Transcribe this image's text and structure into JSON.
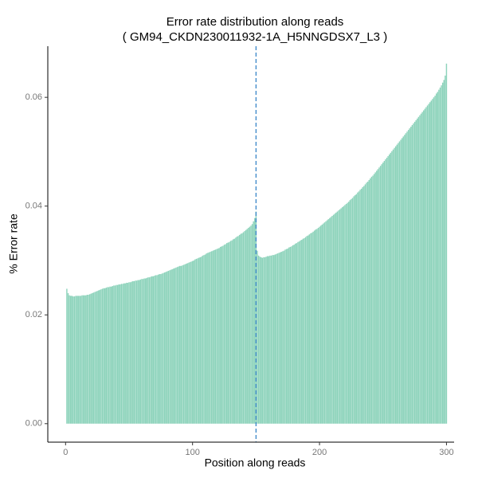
{
  "chart_data": {
    "type": "bar",
    "title": "Error rate distribution along reads",
    "subtitle": "( GM94_CKDN230011932-1A_H5NNGDSX7_L3 )",
    "xlabel": "Position along reads",
    "ylabel": "% Error rate",
    "color": "#8dd3bb",
    "vline": {
      "x": 150,
      "color": "#3a86c8"
    },
    "xlim": [
      -14,
      306
    ],
    "ylim": [
      -0.0034,
      0.0694
    ],
    "xticks": [
      0,
      100,
      200,
      300
    ],
    "yticks": [
      {
        "value": 0,
        "label": "0.00"
      },
      0.02,
      0.04,
      0.06
    ],
    "x": [
      1,
      2,
      3,
      4,
      5,
      6,
      7,
      8,
      9,
      10,
      11,
      12,
      13,
      14,
      15,
      16,
      17,
      18,
      19,
      20,
      21,
      22,
      23,
      24,
      25,
      26,
      27,
      28,
      29,
      30,
      31,
      32,
      33,
      34,
      35,
      36,
      37,
      38,
      39,
      40,
      41,
      42,
      43,
      44,
      45,
      46,
      47,
      48,
      49,
      50,
      51,
      52,
      53,
      54,
      55,
      56,
      57,
      58,
      59,
      60,
      61,
      62,
      63,
      64,
      65,
      66,
      67,
      68,
      69,
      70,
      71,
      72,
      73,
      74,
      75,
      76,
      77,
      78,
      79,
      80,
      81,
      82,
      83,
      84,
      85,
      86,
      87,
      88,
      89,
      90,
      91,
      92,
      93,
      94,
      95,
      96,
      97,
      98,
      99,
      100,
      101,
      102,
      103,
      104,
      105,
      106,
      107,
      108,
      109,
      110,
      111,
      112,
      113,
      114,
      115,
      116,
      117,
      118,
      119,
      120,
      121,
      122,
      123,
      124,
      125,
      126,
      127,
      128,
      129,
      130,
      131,
      132,
      133,
      134,
      135,
      136,
      137,
      138,
      139,
      140,
      141,
      142,
      143,
      144,
      145,
      146,
      147,
      148,
      149,
      150,
      151,
      152,
      153,
      154,
      155,
      156,
      157,
      158,
      159,
      160,
      161,
      162,
      163,
      164,
      165,
      166,
      167,
      168,
      169,
      170,
      171,
      172,
      173,
      174,
      175,
      176,
      177,
      178,
      179,
      180,
      181,
      182,
      183,
      184,
      185,
      186,
      187,
      188,
      189,
      190,
      191,
      192,
      193,
      194,
      195,
      196,
      197,
      198,
      199,
      200,
      201,
      202,
      203,
      204,
      205,
      206,
      207,
      208,
      209,
      210,
      211,
      212,
      213,
      214,
      215,
      216,
      217,
      218,
      219,
      220,
      221,
      222,
      223,
      224,
      225,
      226,
      227,
      228,
      229,
      230,
      231,
      232,
      233,
      234,
      235,
      236,
      237,
      238,
      239,
      240,
      241,
      242,
      243,
      244,
      245,
      246,
      247,
      248,
      249,
      250,
      251,
      252,
      253,
      254,
      255,
      256,
      257,
      258,
      259,
      260,
      261,
      262,
      263,
      264,
      265,
      266,
      267,
      268,
      269,
      270,
      271,
      272,
      273,
      274,
      275,
      276,
      277,
      278,
      279,
      280,
      281,
      282,
      283,
      284,
      285,
      286,
      287,
      288,
      289,
      290,
      291,
      292,
      293,
      294,
      295,
      296,
      297,
      298,
      299,
      300
    ],
    "values": [
      0.0248,
      0.024,
      0.0236,
      0.0235,
      0.0235,
      0.0234,
      0.0234,
      0.0235,
      0.0235,
      0.0235,
      0.0235,
      0.0235,
      0.0236,
      0.0236,
      0.0236,
      0.0236,
      0.0237,
      0.0237,
      0.0238,
      0.0239,
      0.024,
      0.0241,
      0.0242,
      0.0243,
      0.0244,
      0.0245,
      0.0246,
      0.0247,
      0.0248,
      0.0249,
      0.0249,
      0.025,
      0.0251,
      0.0251,
      0.0252,
      0.0252,
      0.0253,
      0.0254,
      0.0254,
      0.0255,
      0.0255,
      0.0256,
      0.0256,
      0.0257,
      0.0257,
      0.0258,
      0.0258,
      0.0259,
      0.0259,
      0.026,
      0.026,
      0.0261,
      0.0262,
      0.0262,
      0.0263,
      0.0263,
      0.0264,
      0.0264,
      0.0265,
      0.0266,
      0.0266,
      0.0267,
      0.0267,
      0.0268,
      0.0269,
      0.0269,
      0.027,
      0.0271,
      0.0271,
      0.0272,
      0.0273,
      0.0273,
      0.0274,
      0.0275,
      0.0275,
      0.0276,
      0.0277,
      0.0278,
      0.0279,
      0.028,
      0.0281,
      0.0282,
      0.0283,
      0.0284,
      0.0285,
      0.0286,
      0.0287,
      0.0288,
      0.0289,
      0.029,
      0.029,
      0.0291,
      0.0292,
      0.0293,
      0.0294,
      0.0295,
      0.0296,
      0.0297,
      0.0298,
      0.0299,
      0.03,
      0.0302,
      0.0303,
      0.0304,
      0.0305,
      0.0306,
      0.0307,
      0.0309,
      0.031,
      0.0311,
      0.0313,
      0.0314,
      0.0315,
      0.0316,
      0.0317,
      0.0318,
      0.0319,
      0.032,
      0.0321,
      0.0322,
      0.0323,
      0.0325,
      0.0326,
      0.0327,
      0.0329,
      0.033,
      0.0332,
      0.0333,
      0.0334,
      0.0336,
      0.0337,
      0.0339,
      0.034,
      0.0342,
      0.0344,
      0.0345,
      0.0347,
      0.0349,
      0.035,
      0.0352,
      0.0354,
      0.0356,
      0.0358,
      0.036,
      0.0362,
      0.0364,
      0.0367,
      0.0372,
      0.0378,
      0.039,
      0.0318,
      0.0309,
      0.0307,
      0.0306,
      0.0305,
      0.0306,
      0.0306,
      0.0307,
      0.0308,
      0.0308,
      0.0309,
      0.0309,
      0.031,
      0.031,
      0.0311,
      0.0312,
      0.0313,
      0.0314,
      0.0315,
      0.0316,
      0.0317,
      0.0318,
      0.032,
      0.0321,
      0.0322,
      0.0324,
      0.0325,
      0.0326,
      0.0328,
      0.0329,
      0.0331,
      0.0332,
      0.0334,
      0.0335,
      0.0337,
      0.0338,
      0.034,
      0.0341,
      0.0343,
      0.0345,
      0.0346,
      0.0348,
      0.035,
      0.0351,
      0.0353,
      0.0355,
      0.0357,
      0.0358,
      0.036,
      0.0362,
      0.0364,
      0.0366,
      0.0368,
      0.037,
      0.0372,
      0.0374,
      0.0376,
      0.0378,
      0.038,
      0.0382,
      0.0384,
      0.0386,
      0.0388,
      0.039,
      0.0392,
      0.0394,
      0.0396,
      0.0398,
      0.04,
      0.0402,
      0.0404,
      0.0406,
      0.0408,
      0.0411,
      0.0413,
      0.0415,
      0.0418,
      0.042,
      0.0422,
      0.0425,
      0.0427,
      0.043,
      0.0432,
      0.0435,
      0.0437,
      0.044,
      0.0443,
      0.0445,
      0.0448,
      0.0451,
      0.0454,
      0.0456,
      0.0459,
      0.0462,
      0.0465,
      0.0468,
      0.0471,
      0.0474,
      0.0477,
      0.048,
      0.0483,
      0.0486,
      0.0489,
      0.0492,
      0.0495,
      0.0498,
      0.0501,
      0.0504,
      0.0507,
      0.051,
      0.0513,
      0.0516,
      0.0519,
      0.0522,
      0.0525,
      0.0528,
      0.0531,
      0.0534,
      0.0537,
      0.054,
      0.0543,
      0.0546,
      0.0549,
      0.0552,
      0.0555,
      0.0558,
      0.0561,
      0.0564,
      0.0567,
      0.057,
      0.0573,
      0.0576,
      0.0579,
      0.0582,
      0.0585,
      0.0588,
      0.0591,
      0.0594,
      0.0597,
      0.06,
      0.0603,
      0.0607,
      0.061,
      0.0614,
      0.0618,
      0.0622,
      0.0627,
      0.0632,
      0.064,
      0.0662
    ]
  }
}
